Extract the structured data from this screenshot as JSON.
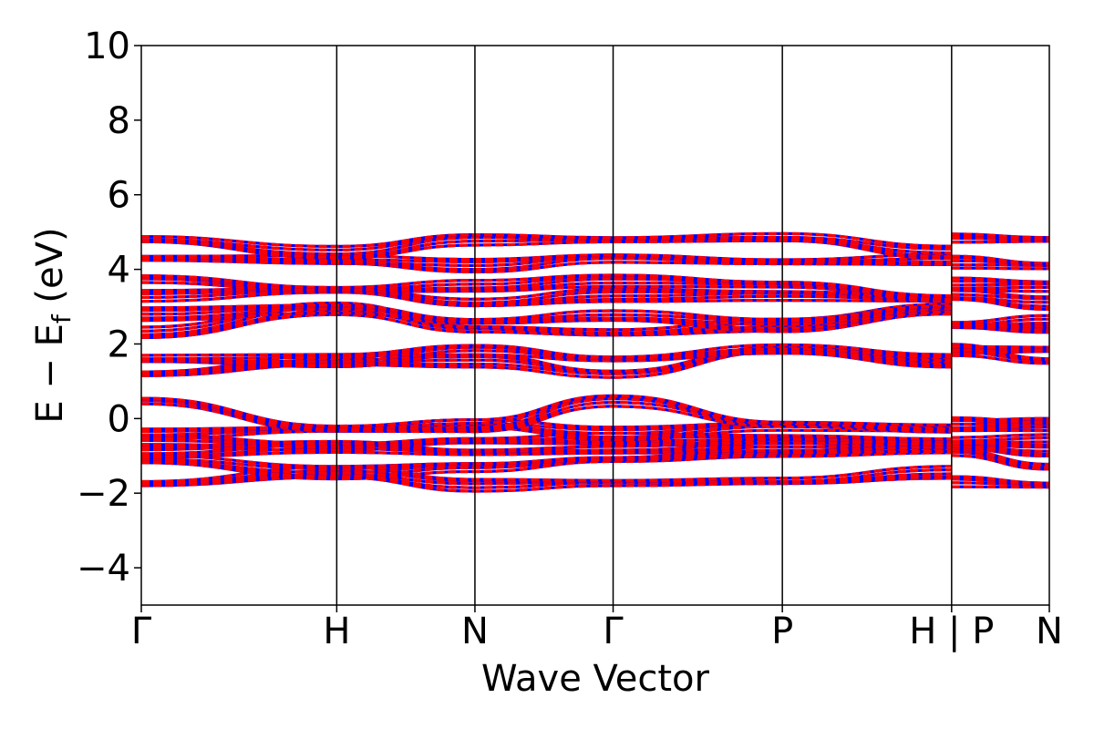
{
  "chart_data": {
    "type": "line",
    "title": "",
    "xlabel": "Wave Vector",
    "ylabel": {
      "main": "E − E",
      "sub": "f",
      "unit": " (eV)"
    },
    "ylim": [
      -5,
      10
    ],
    "yticks": [
      -4,
      -2,
      0,
      2,
      4,
      6,
      8,
      10
    ],
    "ytick_labels": [
      "−4",
      "−2",
      "0",
      "2",
      "4",
      "6",
      "8",
      "10"
    ],
    "kpath": [
      {
        "label": "Γ",
        "x": 0.0
      },
      {
        "label": "H",
        "x": 1.0
      },
      {
        "label": "N",
        "x": 1.7071
      },
      {
        "label": "Γ",
        "x": 2.4142
      },
      {
        "label": "P",
        "x": 3.2802
      },
      {
        "label": "H | P",
        "x": 4.1463
      },
      {
        "label": "N",
        "x": 4.6463
      }
    ],
    "xlim": [
      0,
      4.6463
    ],
    "grid": false,
    "legend": "none",
    "series_colors": {
      "spin_up": "#ff0000",
      "spin_down": "#0000ff"
    },
    "band_groups": [
      {
        "name": "",
        "points": [
          [
            0,
            -1.75
          ],
          [
            1.0,
            -1.45
          ],
          [
            1.7071,
            -1.78
          ],
          [
            2.4142,
            -1.72
          ],
          [
            3.2802,
            -1.68
          ],
          [
            4.1463,
            -1.45
          ],
          [
            4.1463,
            -1.68
          ],
          [
            4.6463,
            -1.78
          ]
        ]
      },
      {
        "name": "",
        "points": [
          [
            0,
            -1.1
          ],
          [
            1.0,
            -1.45
          ],
          [
            1.7071,
            -1.3
          ],
          [
            2.4142,
            -1.1
          ],
          [
            3.2802,
            -0.9
          ],
          [
            4.1463,
            -0.75
          ],
          [
            4.1463,
            -0.9
          ],
          [
            4.6463,
            -1.3
          ]
        ]
      },
      {
        "name": "",
        "points": [
          [
            0,
            -0.9
          ],
          [
            1.0,
            -0.75
          ],
          [
            1.7071,
            -0.9
          ],
          [
            2.4142,
            -0.85
          ],
          [
            3.2802,
            -0.75
          ],
          [
            4.1463,
            -0.75
          ],
          [
            4.1463,
            -0.75
          ],
          [
            4.6463,
            -0.9
          ]
        ]
      },
      {
        "name": "",
        "points": [
          [
            0,
            -0.6
          ],
          [
            1.0,
            -0.75
          ],
          [
            1.7071,
            -0.6
          ],
          [
            2.4142,
            -0.55
          ],
          [
            3.2802,
            -0.6
          ],
          [
            4.1463,
            -0.6
          ],
          [
            4.1463,
            -0.6
          ],
          [
            4.6463,
            -0.6
          ]
        ]
      },
      {
        "name": "",
        "points": [
          [
            0,
            -0.4
          ],
          [
            1.0,
            -0.28
          ],
          [
            1.7071,
            -0.15
          ],
          [
            2.4142,
            -0.4
          ],
          [
            3.2802,
            -0.2
          ],
          [
            4.1463,
            -0.28
          ],
          [
            4.1463,
            -0.2
          ],
          [
            4.6463,
            -0.15
          ]
        ]
      },
      {
        "name": "",
        "points": [
          [
            0,
            0.48
          ],
          [
            1.0,
            -0.28
          ],
          [
            1.7071,
            -0.2
          ],
          [
            2.4142,
            0.48
          ],
          [
            3.2802,
            -0.15
          ],
          [
            4.1463,
            -0.28
          ],
          [
            4.1463,
            -0.15
          ],
          [
            4.6463,
            -0.2
          ]
        ]
      },
      {
        "name": "",
        "points": [
          [
            0,
            1.2
          ],
          [
            1.0,
            1.55
          ],
          [
            1.7071,
            1.55
          ],
          [
            2.4142,
            1.2
          ],
          [
            3.2802,
            1.85
          ],
          [
            4.1463,
            1.55
          ],
          [
            4.1463,
            1.85
          ],
          [
            4.6463,
            1.55
          ]
        ]
      },
      {
        "name": "",
        "points": [
          [
            0,
            1.6
          ],
          [
            1.0,
            1.55
          ],
          [
            1.7071,
            1.85
          ],
          [
            2.4142,
            1.6
          ],
          [
            3.2802,
            1.85
          ],
          [
            4.1463,
            1.55
          ],
          [
            4.1463,
            1.85
          ],
          [
            4.6463,
            1.85
          ]
        ]
      },
      {
        "name": "",
        "points": [
          [
            0,
            2.3
          ],
          [
            1.0,
            2.95
          ],
          [
            1.7071,
            2.4
          ],
          [
            2.4142,
            2.3
          ],
          [
            3.2802,
            2.5
          ],
          [
            4.1463,
            2.95
          ],
          [
            4.1463,
            2.5
          ],
          [
            4.6463,
            2.4
          ]
        ]
      },
      {
        "name": "",
        "points": [
          [
            0,
            2.8
          ],
          [
            1.0,
            2.95
          ],
          [
            1.7071,
            2.6
          ],
          [
            2.4142,
            2.75
          ],
          [
            3.2802,
            2.5
          ],
          [
            4.1463,
            2.95
          ],
          [
            4.1463,
            2.5
          ],
          [
            4.6463,
            2.6
          ]
        ]
      },
      {
        "name": "",
        "points": [
          [
            0,
            3.3
          ],
          [
            1.0,
            3.45
          ],
          [
            1.7071,
            3.1
          ],
          [
            2.4142,
            3.3
          ],
          [
            3.2802,
            3.3
          ],
          [
            4.1463,
            3.2
          ],
          [
            4.1463,
            3.3
          ],
          [
            4.6463,
            3.1
          ]
        ]
      },
      {
        "name": "",
        "points": [
          [
            0,
            3.75
          ],
          [
            1.0,
            3.45
          ],
          [
            1.7071,
            3.55
          ],
          [
            2.4142,
            3.7
          ],
          [
            3.2802,
            3.6
          ],
          [
            4.1463,
            3.2
          ],
          [
            4.1463,
            3.6
          ],
          [
            4.6463,
            3.55
          ]
        ]
      },
      {
        "name": "",
        "points": [
          [
            0,
            4.3
          ],
          [
            1.0,
            4.25
          ],
          [
            1.7071,
            4.1
          ],
          [
            2.4142,
            4.3
          ],
          [
            3.2802,
            4.2
          ],
          [
            4.1463,
            4.25
          ],
          [
            4.1463,
            4.2
          ],
          [
            4.6463,
            4.1
          ]
        ]
      },
      {
        "name": "",
        "points": [
          [
            0,
            4.8
          ],
          [
            1.0,
            4.45
          ],
          [
            1.7071,
            4.8
          ],
          [
            2.4142,
            4.8
          ],
          [
            3.2802,
            4.85
          ],
          [
            4.1463,
            4.45
          ],
          [
            4.1463,
            4.85
          ],
          [
            4.6463,
            4.8
          ]
        ]
      }
    ]
  }
}
